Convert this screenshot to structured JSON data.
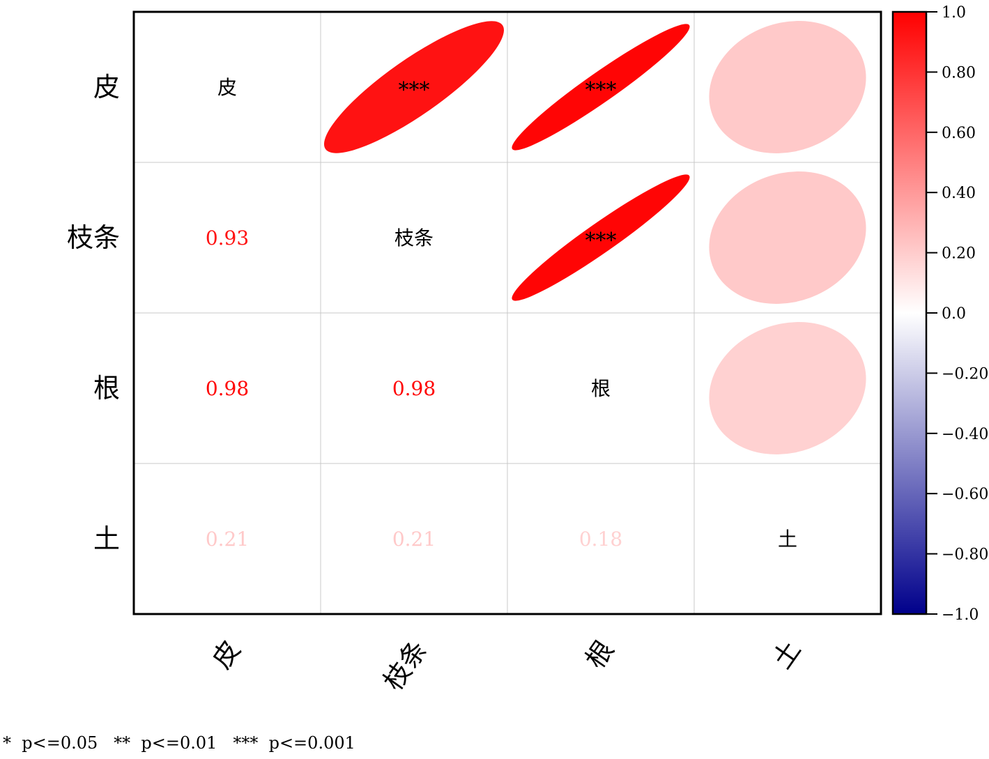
{
  "chart_data": {
    "type": "heatmap",
    "variables": [
      "皮",
      "枝条",
      "根",
      "土"
    ],
    "correlation_matrix": [
      [
        1.0,
        0.93,
        0.98,
        0.21
      ],
      [
        0.93,
        1.0,
        0.98,
        0.21
      ],
      [
        0.98,
        0.98,
        1.0,
        0.18
      ],
      [
        0.21,
        0.21,
        0.18,
        1.0
      ]
    ],
    "significance_upper": [
      [
        "",
        "***",
        "***",
        ""
      ],
      [
        "",
        "",
        "***",
        ""
      ],
      [
        "",
        "",
        "",
        ""
      ],
      [
        "",
        "",
        "",
        ""
      ]
    ],
    "lower_triangle_labels": [
      [
        "",
        "",
        "",
        ""
      ],
      [
        "0.93",
        "",
        "",
        ""
      ],
      [
        "0.98",
        "0.98",
        "",
        ""
      ],
      [
        "0.21",
        "0.21",
        "0.18",
        ""
      ]
    ],
    "colorbar": {
      "range": [
        -1.0,
        1.0
      ],
      "ticks": [
        "1.0",
        "0.80",
        "0.60",
        "0.40",
        "0.20",
        "0.0",
        "−0.20",
        "−0.40",
        "−0.60",
        "−0.80",
        "−1.0"
      ],
      "colors": {
        "negative": "#00008b",
        "zero": "#ffffff",
        "positive": "#ff0000"
      }
    },
    "upper_glyph": "ellipse",
    "lower_glyph": "number",
    "legend_placement": "right",
    "grid": true
  },
  "significance_legend": "*  p<=0.05   **  p<=0.01   ***  p<=0.001"
}
